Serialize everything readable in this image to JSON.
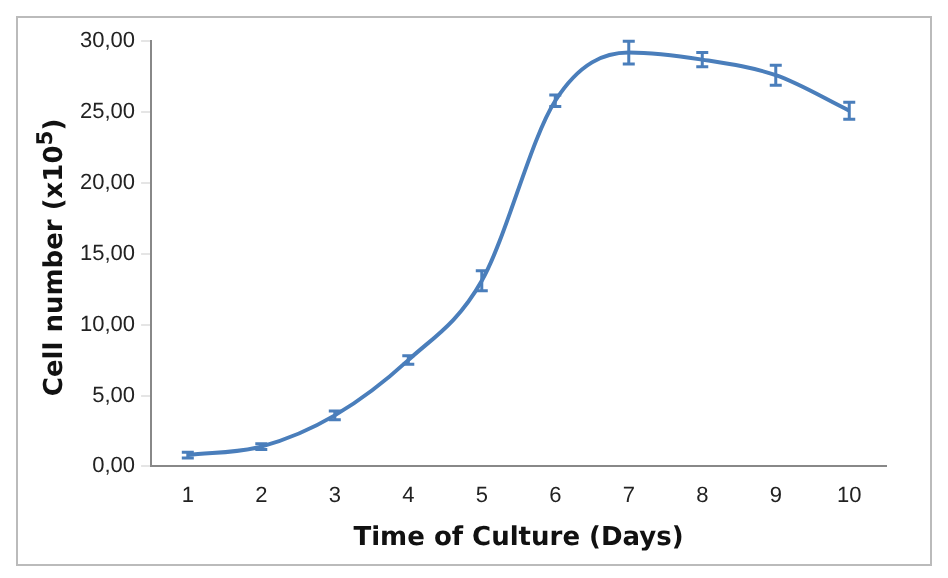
{
  "chart_data": {
    "type": "line",
    "xlabel": "Time of Culture (Days)",
    "ylabel": "Cell number (x10$^{5}$)",
    "categories": [
      "1",
      "2",
      "3",
      "4",
      "5",
      "6",
      "7",
      "8",
      "9",
      "10"
    ],
    "values": [
      0.8,
      1.4,
      3.6,
      7.5,
      13.1,
      25.8,
      29.2,
      28.7,
      27.6,
      25.1
    ],
    "errors": [
      0.2,
      0.2,
      0.3,
      0.3,
      0.7,
      0.4,
      0.8,
      0.5,
      0.7,
      0.6
    ],
    "color": "#4a7ebb",
    "grid": false,
    "legend": false,
    "ylim": [
      0,
      30
    ],
    "yticks": [
      {
        "value": 0,
        "label": "0,00"
      },
      {
        "value": 5,
        "label": "5,00"
      },
      {
        "value": 10,
        "label": "10,00"
      },
      {
        "value": 15,
        "label": "15,00"
      },
      {
        "value": 20,
        "label": "20,00"
      },
      {
        "value": 25,
        "label": "25,00"
      },
      {
        "value": 30,
        "label": "30,00"
      }
    ]
  }
}
